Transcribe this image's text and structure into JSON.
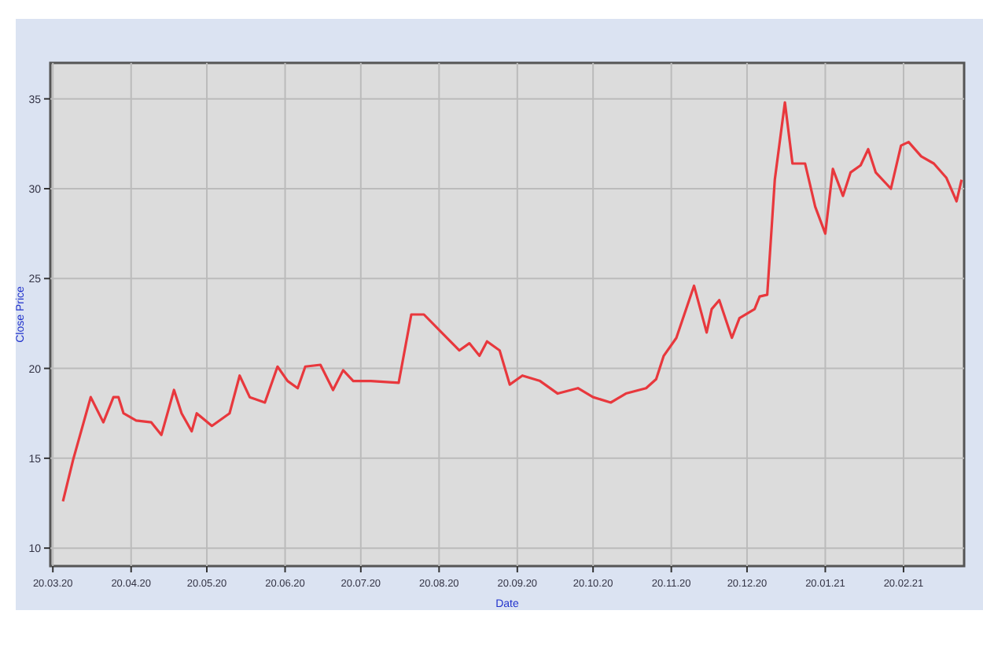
{
  "chart_data": {
    "type": "line",
    "xlabel": "Date",
    "ylabel": "Close Price",
    "x": [
      "2020-03-24",
      "2020-03-28",
      "2020-04-04",
      "2020-04-09",
      "2020-04-13",
      "2020-04-15",
      "2020-04-17",
      "2020-04-22",
      "2020-04-28",
      "2020-05-02",
      "2020-05-07",
      "2020-05-10",
      "2020-05-14",
      "2020-05-16",
      "2020-05-22",
      "2020-05-29",
      "2020-06-02",
      "2020-06-06",
      "2020-06-12",
      "2020-06-17",
      "2020-06-21",
      "2020-06-25",
      "2020-06-28",
      "2020-07-04",
      "2020-07-09",
      "2020-07-13",
      "2020-07-17",
      "2020-07-24",
      "2020-08-04",
      "2020-08-09",
      "2020-08-14",
      "2020-08-21",
      "2020-08-28",
      "2020-09-01",
      "2020-09-05",
      "2020-09-08",
      "2020-09-13",
      "2020-09-17",
      "2020-09-22",
      "2020-09-29",
      "2020-10-06",
      "2020-10-14",
      "2020-10-20",
      "2020-10-27",
      "2020-11-02",
      "2020-11-10",
      "2020-11-14",
      "2020-11-17",
      "2020-11-22",
      "2020-11-29",
      "2020-12-04",
      "2020-12-06",
      "2020-12-09",
      "2020-12-14",
      "2020-12-17",
      "2020-12-23",
      "2020-12-25",
      "2020-12-28",
      "2020-12-31",
      "2021-01-04",
      "2021-01-07",
      "2021-01-12",
      "2021-01-16",
      "2021-01-20",
      "2021-01-23",
      "2021-01-27",
      "2021-01-30",
      "2021-02-03",
      "2021-02-06",
      "2021-02-09",
      "2021-02-15",
      "2021-02-19",
      "2021-02-22",
      "2021-02-27",
      "2021-03-04",
      "2021-03-09",
      "2021-03-13",
      "2021-03-15"
    ],
    "series": [
      {
        "color": "#e8383d",
        "values": [
          12.6,
          14.9,
          18.4,
          17.0,
          18.4,
          18.4,
          17.5,
          17.1,
          17.0,
          16.3,
          18.8,
          17.5,
          16.5,
          17.5,
          16.8,
          17.5,
          19.6,
          18.4,
          18.1,
          20.1,
          19.3,
          18.9,
          20.1,
          20.2,
          18.8,
          19.9,
          19.3,
          19.3,
          19.2,
          23.0,
          23.0,
          22.0,
          21.0,
          21.4,
          20.7,
          21.5,
          21.0,
          19.1,
          19.6,
          19.3,
          18.6,
          18.9,
          18.4,
          18.1,
          18.6,
          18.9,
          19.4,
          20.7,
          21.7,
          24.6,
          22.0,
          23.3,
          23.8,
          21.7,
          22.8,
          23.3,
          24.0,
          24.1,
          30.5,
          34.8,
          31.4,
          31.4,
          29.0,
          27.5,
          31.1,
          29.6,
          30.9,
          31.3,
          32.2,
          30.9,
          30.0,
          32.4,
          32.6,
          31.8,
          31.4,
          30.6,
          29.3,
          30.5
        ]
      }
    ],
    "xlim": [
      "2020-03-19",
      "2021-03-16"
    ],
    "xticks": [
      {
        "value": "2020-03-20",
        "label": "20.03.20"
      },
      {
        "value": "2020-04-20",
        "label": "20.04.20"
      },
      {
        "value": "2020-05-20",
        "label": "20.05.20"
      },
      {
        "value": "2020-06-20",
        "label": "20.06.20"
      },
      {
        "value": "2020-07-20",
        "label": "20.07.20"
      },
      {
        "value": "2020-08-20",
        "label": "20.08.20"
      },
      {
        "value": "2020-09-20",
        "label": "20.09.20"
      },
      {
        "value": "2020-10-20",
        "label": "20.10.20"
      },
      {
        "value": "2020-11-20",
        "label": "20.11.20"
      },
      {
        "value": "2020-12-20",
        "label": "20.12.20"
      },
      {
        "value": "2021-01-20",
        "label": "20.01.21"
      },
      {
        "value": "2021-02-20",
        "label": "20.02.21"
      }
    ],
    "ylim": [
      9,
      37
    ],
    "yticks": [
      10,
      15,
      20,
      25,
      30,
      35
    ],
    "grid": true,
    "marker": "none",
    "line_style": "solid"
  }
}
